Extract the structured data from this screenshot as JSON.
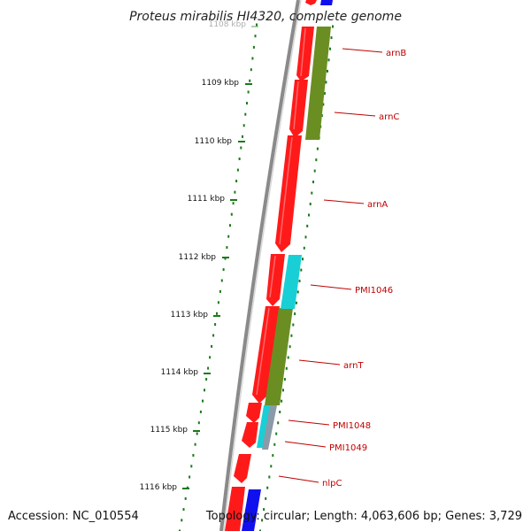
{
  "title": "Proteus mirabilis HI4320, complete genome",
  "accession": "Accession: NC_010554",
  "topology": "Topology: circular; Length: 4,063,606 bp; Genes: 3,729",
  "scale_ticks": [
    {
      "label": "1108 kbp",
      "faded": true
    },
    {
      "label": "1109 kbp",
      "faded": false
    },
    {
      "label": "1110 kbp",
      "faded": false
    },
    {
      "label": "1111 kbp",
      "faded": false
    },
    {
      "label": "1112 kbp",
      "faded": false
    },
    {
      "label": "1113 kbp",
      "faded": false
    },
    {
      "label": "1114 kbp",
      "faded": false
    },
    {
      "label": "1115 kbp",
      "faded": false
    },
    {
      "label": "1116 kbp",
      "faded": false
    }
  ],
  "genes": [
    "arnB",
    "arnC",
    "arnA",
    "PMI1046",
    "arnT",
    "PMI1048",
    "PMI1049",
    "nlpC"
  ],
  "colors": {
    "cds": "#ff1a1a",
    "green": "#6b8e23",
    "cyan": "#19cfd6",
    "blue": "#1010ee",
    "label": "#c00000",
    "tick_dot": "#1a7a1a",
    "backbone": "#8a8a8a"
  }
}
